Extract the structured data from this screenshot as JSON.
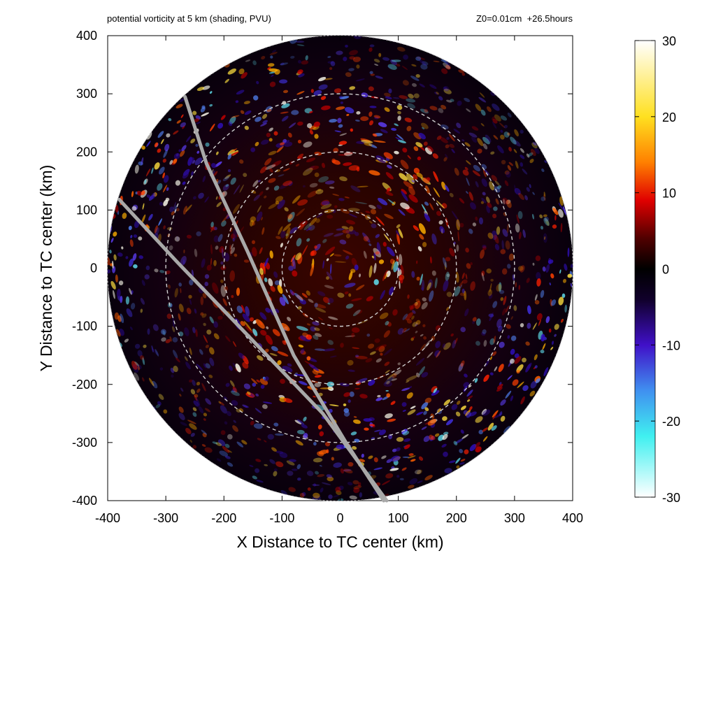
{
  "header": {
    "title_left": "potential vorticity at 5 km (shading, PVU)",
    "title_right": "Z0=0.01cm  +26.5hours"
  },
  "chart_data": {
    "type": "heatmap",
    "title": "potential vorticity at 5 km (shading, PVU)",
    "subtitle": "Z0=0.01cm  +26.5hours",
    "xlabel": "X Distance to TC center (km)",
    "ylabel": "Y Distance to TC center (km)",
    "xlim": [
      -400,
      400
    ],
    "ylim": [
      -400,
      400
    ],
    "xticks": [
      -400,
      -300,
      -200,
      -100,
      0,
      100,
      200,
      300,
      400
    ],
    "yticks": [
      -400,
      -300,
      -200,
      -100,
      0,
      100,
      200,
      300,
      400
    ],
    "grid": false,
    "colorbar": {
      "range": [
        -30,
        30
      ],
      "ticks": [
        30,
        20,
        10,
        0,
        -10,
        -20,
        -30
      ],
      "colormap": [
        {
          "value": 30,
          "color": "#ffffff"
        },
        {
          "value": 20,
          "color": "#ffe020"
        },
        {
          "value": 14,
          "color": "#ff8000"
        },
        {
          "value": 9,
          "color": "#e00000"
        },
        {
          "value": 4,
          "color": "#500000"
        },
        {
          "value": 0,
          "color": "#000000"
        },
        {
          "value": -4,
          "color": "#10002a"
        },
        {
          "value": -10,
          "color": "#4010c8"
        },
        {
          "value": -16,
          "color": "#4090f0"
        },
        {
          "value": -22,
          "color": "#40f0f0"
        },
        {
          "value": -30,
          "color": "#ffffff"
        }
      ]
    },
    "range_rings_km": [
      100,
      200,
      300
    ],
    "domain_radius_km": 400,
    "overlay_lines": [
      {
        "points": [
          [
            -267,
            295
          ],
          [
            -230,
            180
          ],
          [
            -160,
            30
          ],
          [
            -80,
            -150
          ],
          [
            10,
            -300
          ],
          [
            75,
            -400
          ]
        ]
      },
      {
        "points": [
          [
            -380,
            118
          ],
          [
            -280,
            10
          ],
          [
            -150,
            -125
          ],
          [
            -30,
            -250
          ],
          [
            80,
            -400
          ]
        ]
      }
    ]
  }
}
